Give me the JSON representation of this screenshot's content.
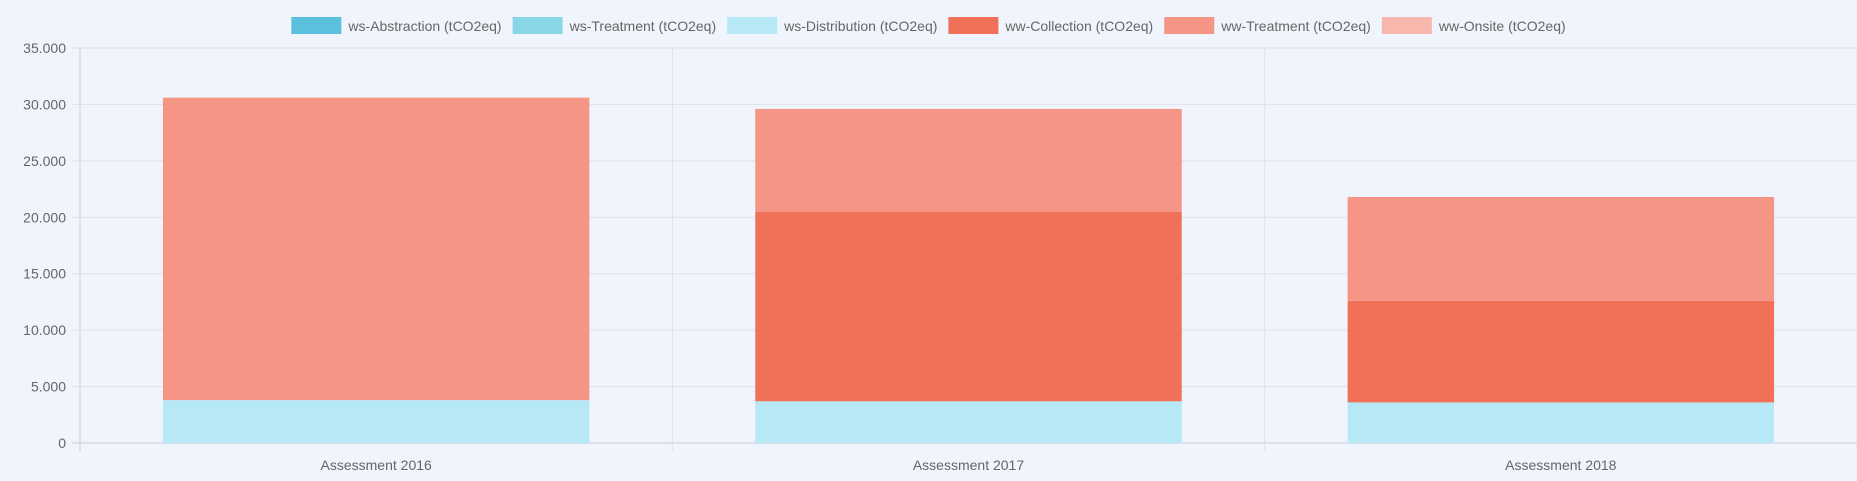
{
  "chart_data": {
    "type": "bar",
    "stacked": true,
    "title": "",
    "xlabel": "",
    "ylabel": "",
    "categories": [
      "Assessment 2016",
      "Assessment 2017",
      "Assessment 2018"
    ],
    "ylim": [
      0,
      35000
    ],
    "yticks": [
      0,
      5000,
      10000,
      15000,
      20000,
      25000,
      30000,
      35000
    ],
    "ytick_labels": [
      "0",
      "5.000",
      "10.000",
      "15.000",
      "20.000",
      "25.000",
      "30.000",
      "35.000"
    ],
    "grid": true,
    "legend_position": "top-center",
    "series": [
      {
        "name": "ws-Abstraction (tCO2eq)",
        "color": "#5bc0de",
        "values": [
          0,
          0,
          0
        ]
      },
      {
        "name": "ws-Treatment (tCO2eq)",
        "color": "#89d6e6",
        "values": [
          0,
          0,
          0
        ]
      },
      {
        "name": "ws-Distribution (tCO2eq)",
        "color": "#b7e8f5",
        "values": [
          3800,
          3700,
          3600
        ]
      },
      {
        "name": "ww-Collection (tCO2eq)",
        "color": "#f07058",
        "values": [
          0,
          16800,
          9000
        ]
      },
      {
        "name": "ww-Treatment (tCO2eq)",
        "color": "#f59585",
        "values": [
          26800,
          9100,
          9200
        ]
      },
      {
        "name": "ww-Onsite (tCO2eq)",
        "color": "#f7b7ad",
        "values": [
          0,
          0,
          0
        ]
      }
    ]
  }
}
